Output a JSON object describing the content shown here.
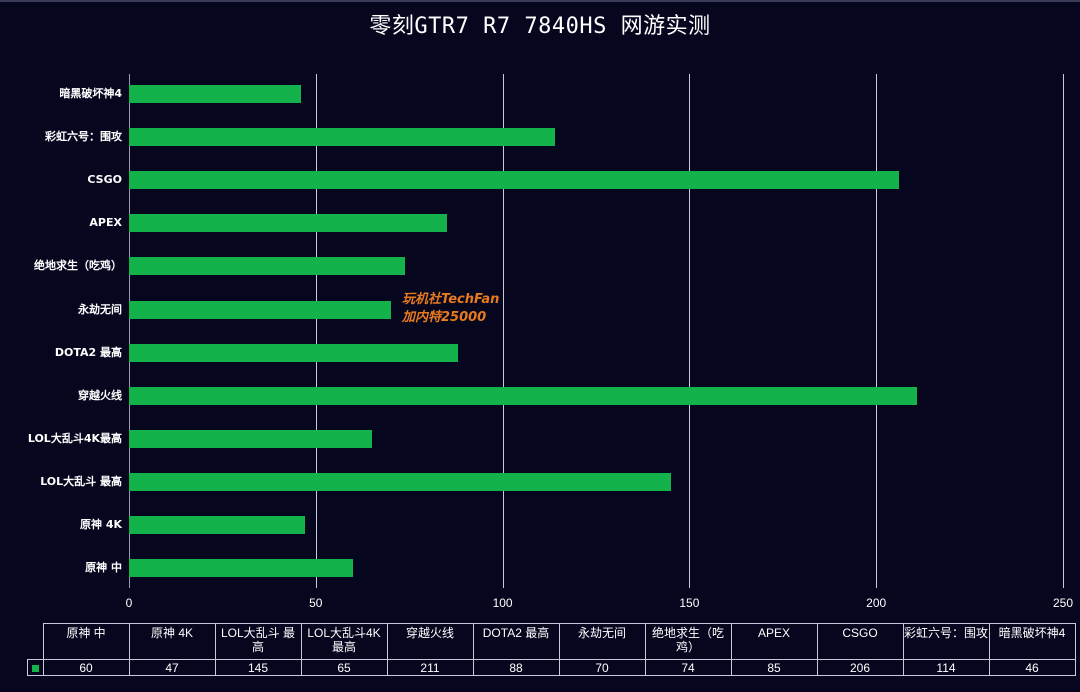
{
  "title": "零刻GTR7 R7 7840HS 网游实测",
  "watermark": {
    "line1": "玩机社TechFan",
    "line2": "加内特25000"
  },
  "colors": {
    "background": "#06061f",
    "bar": "#14b24a",
    "watermark": "#e87a1e",
    "grid": "#c8c8dc"
  },
  "axis": {
    "ticks": [
      "0",
      "50",
      "100",
      "150",
      "200",
      "250"
    ]
  },
  "table": {
    "headers": [
      "原神 中",
      "原神 4K",
      "LOL大乱斗 最高",
      "LOL大乱斗4K最高",
      "穿越火线",
      "DOTA2 最高",
      "永劫无间",
      "绝地求生（吃鸡）",
      "APEX",
      "CSGO",
      "彩虹六号：围攻",
      "暗黑破坏神4"
    ],
    "values": [
      "60",
      "47",
      "145",
      "65",
      "211",
      "88",
      "70",
      "74",
      "85",
      "206",
      "114",
      "46"
    ]
  },
  "chart_data": {
    "type": "bar",
    "orientation": "horizontal",
    "title": "零刻GTR7 R7 7840HS 网游实测",
    "xlabel": "",
    "ylabel": "",
    "xlim": [
      0,
      250
    ],
    "xticks": [
      0,
      50,
      100,
      150,
      200,
      250
    ],
    "grid": true,
    "legend": "data table with color key",
    "categories": [
      "原神 中",
      "原神 4K",
      "LOL大乱斗 最高",
      "LOL大乱斗4K最高",
      "穿越火线",
      "DOTA2 最高",
      "永劫无间",
      "绝地求生（吃鸡）",
      "APEX",
      "CSGO",
      "彩虹六号：围攻",
      "暗黑破坏神4"
    ],
    "values": [
      60,
      47,
      145,
      65,
      211,
      88,
      70,
      74,
      85,
      206,
      114,
      46
    ],
    "annotations": [
      "玩机社TechFan",
      "加内特25000"
    ]
  }
}
